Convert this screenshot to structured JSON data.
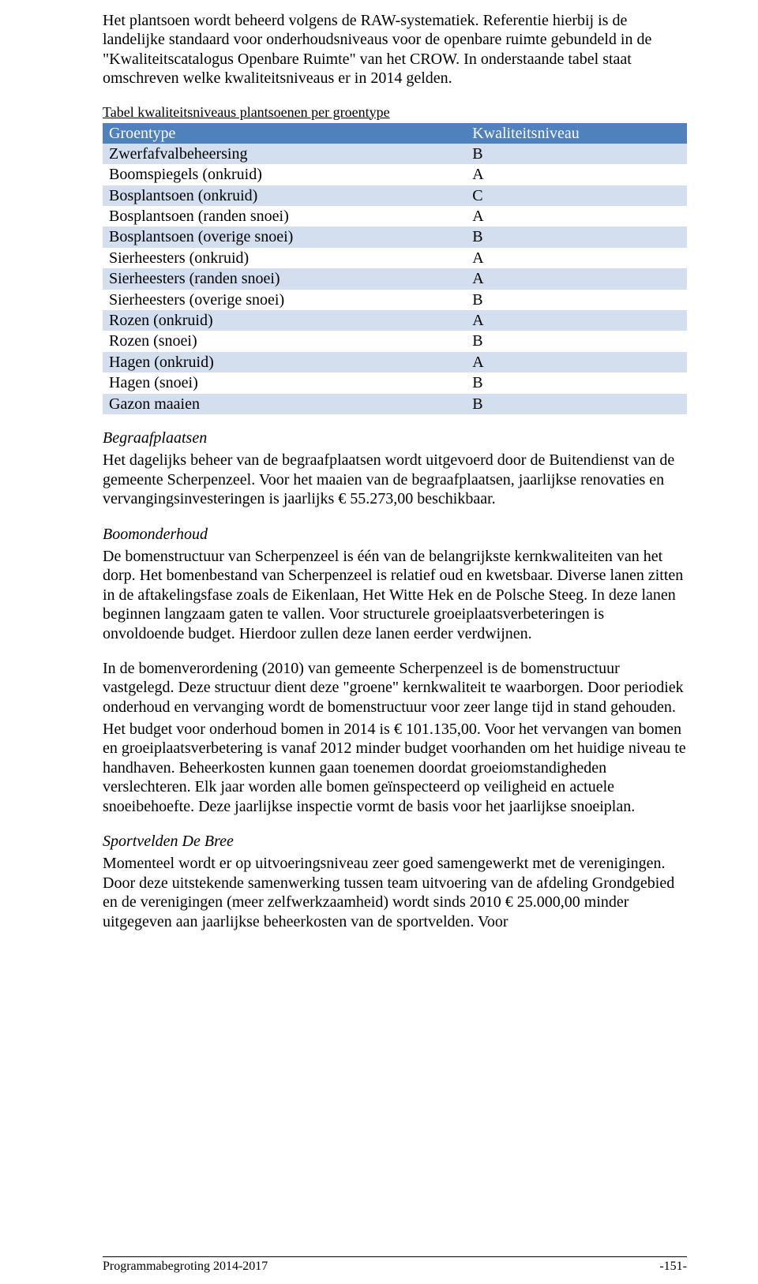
{
  "intro": {
    "p1": "Het plantsoen wordt beheerd volgens de RAW-systematiek. Referentie hierbij is de landelijke standaard voor onderhoudsniveaus voor de openbare ruimte gebundeld in de \"Kwaliteitscatalogus Openbare Ruimte\" van het CROW. In onderstaande tabel staat omschreven welke kwaliteitsniveaus er in 2014 gelden."
  },
  "table": {
    "caption": "Tabel kwaliteitsniveaus plantsoenen per groentype",
    "header_left": "Groentype",
    "header_right": "Kwaliteitsniveau",
    "rows": [
      {
        "groentype": "Zwerfafvalbeheersing",
        "niveau": "B"
      },
      {
        "groentype": "Boomspiegels (onkruid)",
        "niveau": "A"
      },
      {
        "groentype": "Bosplantsoen (onkruid)",
        "niveau": "C"
      },
      {
        "groentype": "Bosplantsoen (randen snoei)",
        "niveau": "A"
      },
      {
        "groentype": "Bosplantsoen (overige snoei)",
        "niveau": "B"
      },
      {
        "groentype": "Sierheesters (onkruid)",
        "niveau": "A"
      },
      {
        "groentype": "Sierheesters (randen snoei)",
        "niveau": "A"
      },
      {
        "groentype": "Sierheesters (overige snoei)",
        "niveau": "B"
      },
      {
        "groentype": "Rozen (onkruid)",
        "niveau": "A"
      },
      {
        "groentype": "Rozen (snoei)",
        "niveau": "B"
      },
      {
        "groentype": "Hagen (onkruid)",
        "niveau": "A"
      },
      {
        "groentype": "Hagen (snoei)",
        "niveau": "B"
      },
      {
        "groentype": "Gazon maaien",
        "niveau": "B"
      }
    ]
  },
  "sections": {
    "begraafplaatsen": {
      "title": "Begraafplaatsen",
      "body": "Het dagelijks beheer van de begraafplaatsen wordt uitgevoerd door de Buitendienst van de gemeente Scherpenzeel. Voor het maaien van de begraafplaatsen, jaarlijkse renovaties en vervangingsinvesteringen is jaarlijks € 55.273,00 beschikbaar."
    },
    "boomonderhoud": {
      "title": "Boomonderhoud",
      "body1": "De bomenstructuur van Scherpenzeel is één van de belangrijkste kernkwaliteiten van het dorp. Het bomenbestand van Scherpenzeel is relatief oud en kwetsbaar. Diverse lanen zitten in de aftakelingsfase zoals de Eikenlaan, Het Witte Hek en de Polsche Steeg. In deze lanen beginnen langzaam gaten te vallen. Voor structurele groeiplaatsverbeteringen is onvoldoende budget. Hierdoor zullen deze lanen eerder verdwijnen.",
      "body2": "In de bomenverordening (2010) van gemeente Scherpenzeel is de bomenstructuur vastgelegd. Deze structuur dient deze \"groene\" kernkwaliteit te waarborgen. Door periodiek onderhoud en vervanging wordt de bomenstructuur voor zeer lange tijd in stand gehouden.",
      "body3": "Het budget voor onderhoud bomen in 2014 is € 101.135,00. Voor het vervangen van bomen en groeiplaatsverbetering is vanaf 2012 minder budget voorhanden om het huidige niveau te handhaven. Beheerkosten kunnen gaan toenemen doordat groeiomstandigheden verslechteren. Elk jaar worden alle bomen geïnspecteerd op veiligheid en actuele snoeibehoefte. Deze jaarlijkse inspectie vormt de basis voor het jaarlijkse snoeiplan."
    },
    "sportvelden": {
      "title": "Sportvelden De Bree",
      "body": "Momenteel wordt er op uitvoeringsniveau zeer goed samengewerkt met de verenigingen. Door deze uitstekende samenwerking tussen team uitvoering van de afdeling Grondgebied en de verenigingen (meer zelfwerkzaamheid) wordt sinds 2010 € 25.000,00 minder uitgegeven aan jaarlijkse beheerkosten van de sportvelden. Voor"
    }
  },
  "footer": {
    "left": "Programmabegroting 2014-2017",
    "right": "-151-"
  }
}
